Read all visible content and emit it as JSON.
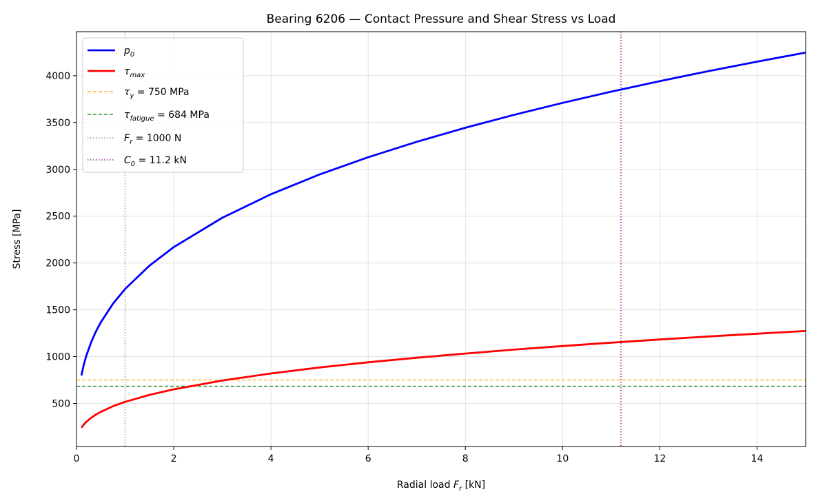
{
  "chart_data": {
    "type": "line",
    "title": "Bearing 6206 — Contact Pressure and Shear Stress vs Load",
    "xlabel": {
      "text": "Radial load ",
      "var": "F",
      "sub": "r",
      "suffix": " [kN]"
    },
    "ylabel": "Stress [MPa]",
    "xlim": [
      0,
      15
    ],
    "ylim": [
      40,
      4470
    ],
    "xticks": [
      0,
      2,
      4,
      6,
      8,
      10,
      12,
      14
    ],
    "yticks": [
      500,
      1000,
      1500,
      2000,
      2500,
      3000,
      3500,
      4000
    ],
    "grid": true,
    "legend_position": "top-left",
    "x": [
      0.1,
      0.15,
      0.2,
      0.3,
      0.4,
      0.5,
      0.75,
      1,
      1.5,
      2,
      3,
      4,
      5,
      6,
      7,
      8,
      9,
      10,
      11,
      12,
      13,
      14,
      15
    ],
    "series": [
      {
        "name": {
          "var": "p",
          "sub": "0"
        },
        "color": "#0000ff",
        "values": [
          799,
          914,
          1007,
          1153,
          1269,
          1367,
          1565,
          1722,
          1971,
          2170,
          2483,
          2734,
          2945,
          3129,
          3294,
          3444,
          3582,
          3710,
          3830,
          3942,
          4049,
          4150,
          4247
        ]
      },
      {
        "name": {
          "var": "τ",
          "sub": "max"
        },
        "color": "#ff0000",
        "values": [
          240,
          274,
          302,
          346,
          381,
          410,
          470,
          517,
          591,
          651,
          745,
          820,
          884,
          939,
          988,
          1033,
          1075,
          1113,
          1149,
          1183,
          1215,
          1245,
          1274
        ]
      }
    ],
    "hlines": [
      {
        "y": 750,
        "color": "#ffa500",
        "style": "dashed",
        "label": {
          "var": "τ",
          "sub": "y",
          "suffix": " = 750 MPa"
        }
      },
      {
        "y": 684,
        "color": "#008000",
        "style": "dashed",
        "label": {
          "var": "τ",
          "sub": "fatigue",
          "suffix": " = 684 MPa"
        }
      }
    ],
    "vlines": [
      {
        "x": 1.0,
        "color": "#808080",
        "style": "dotted",
        "label": {
          "var": "F",
          "sub": "r",
          "suffix": " = 1000 N"
        }
      },
      {
        "x": 11.2,
        "color": "#800080",
        "style": "dotted",
        "label": {
          "var": "C",
          "sub": "0",
          "suffix": " = 11.2 kN"
        }
      }
    ]
  }
}
